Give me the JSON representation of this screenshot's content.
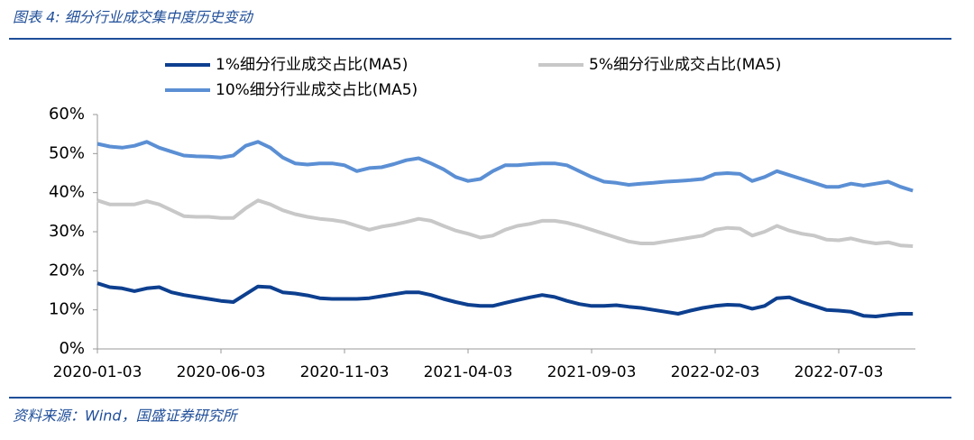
{
  "header": {
    "title": "图表 4:  细分行业成交集中度历史变动"
  },
  "chart_data": {
    "type": "line",
    "categories": [
      "2020-01-03",
      null,
      null,
      null,
      null,
      null,
      null,
      null,
      null,
      null,
      "2020-06-03",
      null,
      null,
      null,
      null,
      null,
      null,
      null,
      null,
      null,
      "2020-11-03",
      null,
      null,
      null,
      null,
      null,
      null,
      null,
      null,
      null,
      "2021-04-03",
      null,
      null,
      null,
      null,
      null,
      null,
      null,
      null,
      null,
      "2021-09-03",
      null,
      null,
      null,
      null,
      null,
      null,
      null,
      null,
      null,
      "2022-02-03",
      null,
      null,
      null,
      null,
      null,
      null,
      null,
      null,
      null,
      "2022-07-03",
      null,
      null,
      null,
      null,
      null,
      null
    ],
    "series": [
      {
        "name": "1%细分行业成交占比(MA5)",
        "color": "#0d3f8f",
        "values": [
          16.8,
          15.8,
          15.5,
          14.8,
          15.5,
          15.8,
          14.5,
          13.8,
          13.3,
          12.8,
          12.3,
          12,
          14,
          16,
          15.8,
          14.5,
          14.2,
          13.7,
          13,
          12.8,
          12.8,
          12.8,
          13,
          13.5,
          14,
          14.5,
          14.5,
          13.8,
          12.8,
          12,
          11.3,
          11,
          11,
          11.8,
          12.5,
          13.2,
          13.8,
          13.3,
          12.3,
          11.5,
          11,
          11,
          11.2,
          10.8,
          10.5,
          10,
          9.5,
          9,
          9.8,
          10.5,
          11,
          11.3,
          11.2,
          10.3,
          11,
          13,
          13.2,
          12,
          11,
          10,
          9.8,
          9.5,
          8.5,
          8.3,
          8.7,
          9,
          9
        ]
      },
      {
        "name": "5%细分行业成交占比(MA5)",
        "color": "#c8c8c8",
        "values": [
          38,
          37,
          37,
          37,
          37.8,
          37,
          35.5,
          34,
          33.8,
          33.8,
          33.5,
          33.5,
          36,
          38,
          37,
          35.5,
          34.5,
          33.8,
          33.3,
          33,
          32.5,
          31.5,
          30.5,
          31.3,
          31.8,
          32.5,
          33.3,
          32.8,
          31.5,
          30.3,
          29.5,
          28.5,
          29,
          30.5,
          31.5,
          32,
          32.8,
          32.8,
          32.3,
          31.5,
          30.5,
          29.5,
          28.5,
          27.5,
          27,
          27,
          27.5,
          28,
          28.5,
          29,
          30.5,
          31,
          30.8,
          29,
          30,
          31.5,
          30.3,
          29.5,
          29,
          28,
          27.8,
          28.3,
          27.5,
          27,
          27.3,
          26.5,
          26.3
        ]
      },
      {
        "name": "10%细分行业成交占比(MA5)",
        "color": "#5b8fd4",
        "values": [
          52.5,
          51.8,
          51.5,
          52,
          53,
          51.5,
          50.5,
          49.5,
          49.3,
          49.2,
          49,
          49.5,
          52,
          53,
          51.5,
          49,
          47.5,
          47.2,
          47.5,
          47.5,
          47,
          45.5,
          46.3,
          46.5,
          47.3,
          48.3,
          48.8,
          47.5,
          46,
          44,
          43,
          43.5,
          45.5,
          47,
          47,
          47.3,
          47.5,
          47.5,
          47,
          45.5,
          44,
          42.8,
          42.5,
          42,
          42.3,
          42.5,
          42.8,
          43,
          43.2,
          43.5,
          44.8,
          45,
          44.8,
          43,
          44,
          45.5,
          44.5,
          43.5,
          42.5,
          41.5,
          41.5,
          42.3,
          41.8,
          42.3,
          42.8,
          41.5,
          40.5
        ]
      }
    ],
    "ylim": [
      0,
      60
    ],
    "yticks": [
      {
        "value": 0,
        "label": "0%"
      },
      {
        "value": 10,
        "label": "10%"
      },
      {
        "value": 20,
        "label": "20%"
      },
      {
        "value": 30,
        "label": "30%"
      },
      {
        "value": 40,
        "label": "40%"
      },
      {
        "value": 50,
        "label": "50%"
      },
      {
        "value": 60,
        "label": "60%"
      }
    ]
  },
  "footer": {
    "source": "资料来源：Wind，国盛证券研究所"
  }
}
